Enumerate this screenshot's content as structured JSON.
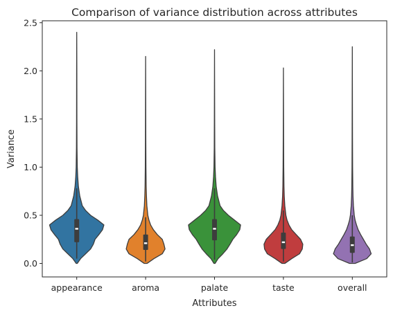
{
  "chart_data": {
    "type": "violin",
    "title": "Comparison of variance distribution across attributes",
    "xlabel": "Attributes",
    "ylabel": "Variance",
    "ylim": [
      -0.14,
      2.52
    ],
    "yticks": [
      "0.0",
      "0.5",
      "1.0",
      "1.5",
      "2.0",
      "2.5"
    ],
    "grid": false,
    "legend": "none",
    "categories": [
      "appearance",
      "aroma",
      "palate",
      "taste",
      "overall"
    ],
    "series": [
      {
        "category": "appearance",
        "color": "#3274a1",
        "min": 0.0,
        "max": 2.4,
        "q1": 0.22,
        "median": 0.36,
        "q3": 0.46,
        "whisker_low": 0.05,
        "whisker_high": 0.78,
        "density": [
          [
            0.0,
            0.02
          ],
          [
            0.05,
            0.14
          ],
          [
            0.1,
            0.32
          ],
          [
            0.15,
            0.5
          ],
          [
            0.2,
            0.6
          ],
          [
            0.25,
            0.66
          ],
          [
            0.3,
            0.8
          ],
          [
            0.35,
            0.93
          ],
          [
            0.4,
            0.98
          ],
          [
            0.45,
            0.76
          ],
          [
            0.5,
            0.5
          ],
          [
            0.55,
            0.32
          ],
          [
            0.6,
            0.2
          ],
          [
            0.7,
            0.11
          ],
          [
            0.8,
            0.06
          ],
          [
            0.9,
            0.035
          ],
          [
            1.0,
            0.02
          ],
          [
            1.2,
            0.01
          ],
          [
            1.5,
            0.006
          ],
          [
            2.0,
            0.004
          ],
          [
            2.4,
            0.0
          ]
        ]
      },
      {
        "category": "aroma",
        "color": "#e1812c",
        "min": 0.0,
        "max": 2.15,
        "q1": 0.14,
        "median": 0.21,
        "q3": 0.3,
        "whisker_low": 0.02,
        "whisker_high": 0.48,
        "density": [
          [
            0.0,
            0.05
          ],
          [
            0.05,
            0.3
          ],
          [
            0.1,
            0.6
          ],
          [
            0.15,
            0.7
          ],
          [
            0.2,
            0.66
          ],
          [
            0.25,
            0.6
          ],
          [
            0.3,
            0.42
          ],
          [
            0.35,
            0.28
          ],
          [
            0.4,
            0.18
          ],
          [
            0.45,
            0.12
          ],
          [
            0.5,
            0.08
          ],
          [
            0.6,
            0.045
          ],
          [
            0.7,
            0.03
          ],
          [
            0.8,
            0.02
          ],
          [
            1.0,
            0.012
          ],
          [
            1.3,
            0.007
          ],
          [
            1.7,
            0.004
          ],
          [
            2.15,
            0.0
          ]
        ]
      },
      {
        "category": "palate",
        "color": "#3a923a",
        "min": 0.0,
        "max": 2.22,
        "q1": 0.24,
        "median": 0.36,
        "q3": 0.46,
        "whisker_low": 0.04,
        "whisker_high": 0.78,
        "density": [
          [
            0.0,
            0.02
          ],
          [
            0.05,
            0.13
          ],
          [
            0.1,
            0.3
          ],
          [
            0.15,
            0.45
          ],
          [
            0.2,
            0.56
          ],
          [
            0.25,
            0.66
          ],
          [
            0.3,
            0.8
          ],
          [
            0.35,
            0.91
          ],
          [
            0.4,
            0.94
          ],
          [
            0.45,
            0.72
          ],
          [
            0.5,
            0.5
          ],
          [
            0.55,
            0.32
          ],
          [
            0.6,
            0.2
          ],
          [
            0.7,
            0.11
          ],
          [
            0.8,
            0.06
          ],
          [
            0.9,
            0.035
          ],
          [
            1.0,
            0.02
          ],
          [
            1.2,
            0.01
          ],
          [
            1.5,
            0.006
          ],
          [
            2.22,
            0.0
          ]
        ]
      },
      {
        "category": "taste",
        "color": "#c03d3e",
        "min": 0.0,
        "max": 2.03,
        "q1": 0.15,
        "median": 0.22,
        "q3": 0.32,
        "whisker_low": 0.02,
        "whisker_high": 0.55,
        "density": [
          [
            0.0,
            0.05
          ],
          [
            0.05,
            0.3
          ],
          [
            0.1,
            0.58
          ],
          [
            0.15,
            0.68
          ],
          [
            0.2,
            0.7
          ],
          [
            0.25,
            0.62
          ],
          [
            0.3,
            0.46
          ],
          [
            0.35,
            0.3
          ],
          [
            0.4,
            0.2
          ],
          [
            0.45,
            0.13
          ],
          [
            0.5,
            0.09
          ],
          [
            0.6,
            0.05
          ],
          [
            0.7,
            0.03
          ],
          [
            0.8,
            0.02
          ],
          [
            1.0,
            0.012
          ],
          [
            1.3,
            0.007
          ],
          [
            1.6,
            0.004
          ],
          [
            2.03,
            0.0
          ]
        ]
      },
      {
        "category": "overall",
        "color": "#9372b2",
        "min": 0.0,
        "max": 2.25,
        "q1": 0.11,
        "median": 0.19,
        "q3": 0.28,
        "whisker_low": 0.01,
        "whisker_high": 0.5,
        "density": [
          [
            0.0,
            0.1
          ],
          [
            0.05,
            0.52
          ],
          [
            0.1,
            0.68
          ],
          [
            0.15,
            0.62
          ],
          [
            0.2,
            0.5
          ],
          [
            0.25,
            0.4
          ],
          [
            0.3,
            0.3
          ],
          [
            0.35,
            0.21
          ],
          [
            0.4,
            0.15
          ],
          [
            0.45,
            0.1
          ],
          [
            0.5,
            0.07
          ],
          [
            0.6,
            0.04
          ],
          [
            0.7,
            0.025
          ],
          [
            0.8,
            0.018
          ],
          [
            1.0,
            0.011
          ],
          [
            1.3,
            0.007
          ],
          [
            1.7,
            0.004
          ],
          [
            2.25,
            0.0
          ]
        ]
      }
    ]
  }
}
